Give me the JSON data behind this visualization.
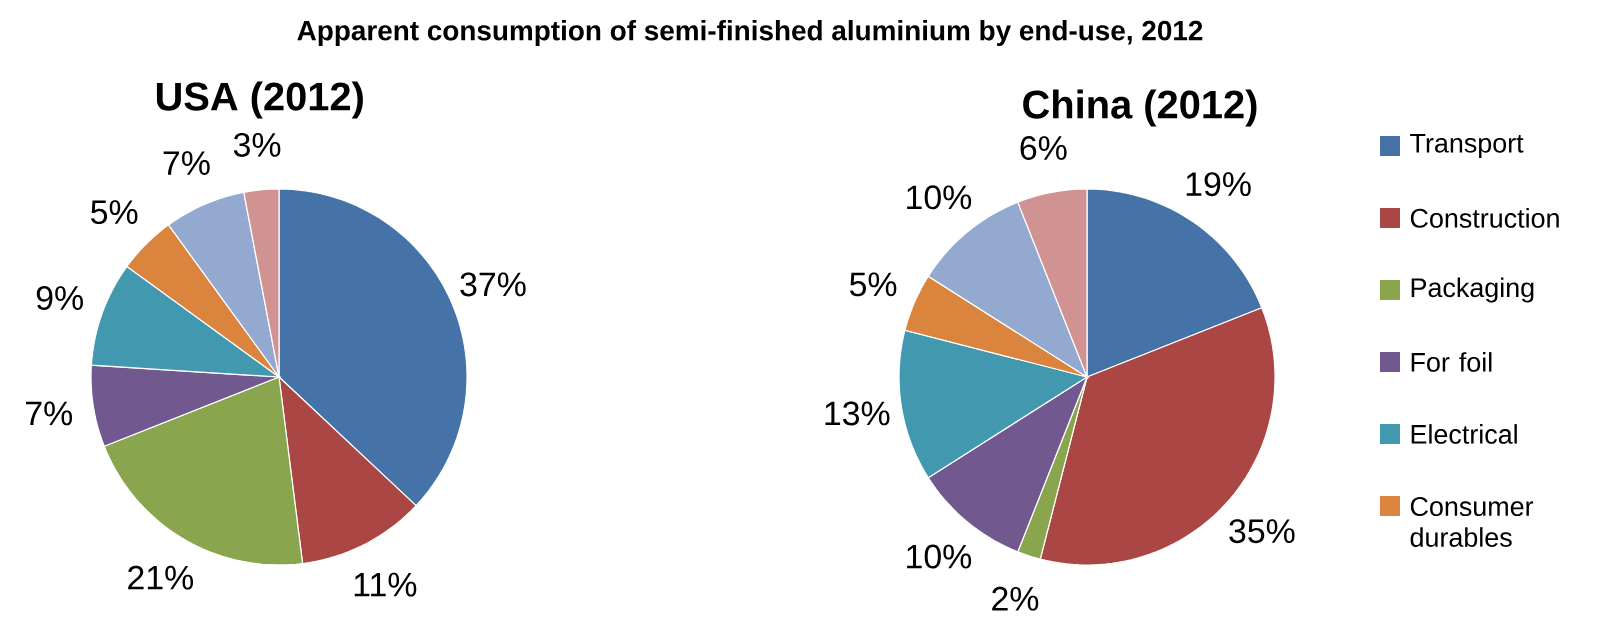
{
  "chart_data": [
    {
      "type": "pie",
      "title": "Apparent consumption of semi-finished aluminium by end-use, 2012",
      "subtitle": "USA (2012)",
      "categories": [
        null,
        null,
        null,
        null,
        null,
        null,
        null,
        null
      ],
      "values": [
        37,
        11,
        21,
        7,
        9,
        5,
        7,
        3
      ],
      "value_labels": [
        "37%",
        "11%",
        "21%",
        "7%",
        "9%",
        "5%",
        "7%",
        "3%"
      ],
      "colors": [
        "#4572a7",
        "#aa4643",
        "#89a54e",
        "#71588f",
        "#4198af",
        "#db843d",
        "#93a9cf",
        "#d19392"
      ]
    },
    {
      "type": "pie",
      "title": "China (2012)",
      "legend": "right",
      "categories": [
        "Transport",
        "Construction",
        "Packaging",
        "For foil",
        "Electrical",
        "Consumer durables",
        null,
        null
      ],
      "values": [
        19,
        35,
        2,
        10,
        13,
        5,
        10,
        6
      ],
      "value_labels": [
        "19%",
        "35%",
        "2%",
        "10%",
        "13%",
        "5%",
        "10%",
        "6%"
      ],
      "colors": [
        "#4572a7",
        "#aa4643",
        "#89a54e",
        "#71588f",
        "#4198af",
        "#db843d",
        "#93a9cf",
        "#d19392"
      ]
    }
  ]
}
